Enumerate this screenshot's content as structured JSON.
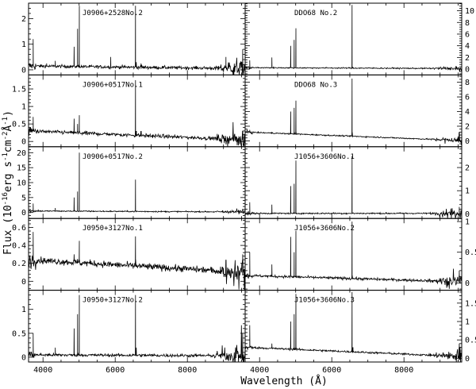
{
  "figure": {
    "ylabel_main": "Flux (10",
    "ylabel_exp1": "-16",
    "ylabel_mid": "erg s",
    "ylabel_exp2": "-1",
    "ylabel_mid2": "cm",
    "ylabel_exp3": "-2",
    "ylabel_mid3": "Å",
    "ylabel_exp4": "-1",
    "ylabel_end": ")",
    "xlabel": "Wavelength (Å)"
  },
  "chart_data": [
    {
      "type": "line",
      "title": "J0906+2528No.2",
      "column": "left",
      "row": 0,
      "ylim": [
        -0.2,
        2.6
      ],
      "yticks": [
        0,
        1,
        2
      ],
      "xlim": [
        3600,
        9600
      ],
      "xticks": [
        4000,
        6000,
        8000
      ],
      "show_xticklabels": false,
      "continuum": [
        0.15,
        0.05
      ],
      "noise": 0.06,
      "red_noise": 0.35,
      "lines": [
        [
          3727,
          1.2
        ],
        [
          4102,
          0.25
        ],
        [
          4340,
          0.35
        ],
        [
          4861,
          0.9
        ],
        [
          4959,
          1.6
        ],
        [
          5007,
          2.5
        ],
        [
          5876,
          0.5
        ],
        [
          6563,
          2.5
        ],
        [
          6584,
          0.3
        ],
        [
          6717,
          0.25
        ],
        [
          6731,
          0.2
        ],
        [
          9069,
          0.5
        ],
        [
          9532,
          0.8
        ]
      ]
    },
    {
      "type": "line",
      "title": "J0906+0517No.1",
      "column": "left",
      "row": 1,
      "ylim": [
        -0.15,
        1.9
      ],
      "yticks": [
        0,
        0.5,
        1,
        1.5
      ],
      "xlim": [
        3600,
        9600
      ],
      "xticks": [
        4000,
        6000,
        8000
      ],
      "show_xticklabels": false,
      "continuum": [
        0.3,
        0.05
      ],
      "noise": 0.05,
      "red_noise": 0.25,
      "lines": [
        [
          3727,
          0.7
        ],
        [
          4861,
          0.65
        ],
        [
          4959,
          0.5
        ],
        [
          5007,
          0.75
        ],
        [
          6563,
          1.75
        ],
        [
          6584,
          0.2
        ],
        [
          6717,
          0.15
        ],
        [
          9532,
          0.3
        ]
      ]
    },
    {
      "type": "line",
      "title": "J0906+0517No.2",
      "column": "left",
      "row": 2,
      "ylim": [
        -2,
        22
      ],
      "yticks": [
        0,
        5,
        10,
        15,
        20
      ],
      "xlim": [
        3600,
        9600
      ],
      "xticks": [
        4000,
        6000,
        8000
      ],
      "show_xticklabels": false,
      "continuum": [
        0.5,
        0.2
      ],
      "noise": 0.2,
      "red_noise": 0.6,
      "lines": [
        [
          3727,
          3
        ],
        [
          3869,
          1
        ],
        [
          4340,
          1.5
        ],
        [
          4861,
          5
        ],
        [
          4959,
          7
        ],
        [
          5007,
          20
        ],
        [
          6563,
          11
        ],
        [
          6584,
          0.5
        ],
        [
          9532,
          1
        ]
      ]
    },
    {
      "type": "line",
      "title": "J0950+3127No.1",
      "column": "left",
      "row": 3,
      "ylim": [
        -0.1,
        0.7
      ],
      "yticks": [
        0,
        0.2,
        0.4,
        0.6
      ],
      "xlim": [
        3600,
        9600
      ],
      "xticks": [
        4000,
        6000,
        8000
      ],
      "show_xticklabels": false,
      "continuum": [
        0.24,
        0.1
      ],
      "noise": 0.035,
      "red_noise": 0.12,
      "lines": [
        [
          3727,
          0.55
        ],
        [
          4861,
          0.3
        ],
        [
          4959,
          0.25
        ],
        [
          5007,
          0.45
        ],
        [
          6563,
          0.5
        ],
        [
          9069,
          0.15
        ],
        [
          9532,
          0.3
        ]
      ]
    },
    {
      "type": "line",
      "title": "J0950+3127No.2",
      "column": "left",
      "row": 4,
      "ylim": [
        -0.1,
        1.4
      ],
      "yticks": [
        0,
        0.5,
        1
      ],
      "xlim": [
        3600,
        9600
      ],
      "xticks": [
        4000,
        6000,
        8000
      ],
      "show_xticklabels": true,
      "continuum": [
        0.05,
        0.03
      ],
      "noise": 0.03,
      "red_noise": 0.25,
      "lines": [
        [
          3727,
          0.5
        ],
        [
          4340,
          0.2
        ],
        [
          4861,
          0.6
        ],
        [
          4959,
          0.9
        ],
        [
          5007,
          1.3
        ],
        [
          6563,
          1.3
        ],
        [
          6584,
          0.2
        ],
        [
          9532,
          0.5
        ]
      ]
    },
    {
      "type": "line",
      "title": "DDO68 No.2",
      "column": "right",
      "row": 0,
      "ylim": [
        -1,
        11.3
      ],
      "yticks": [
        0,
        2,
        4,
        6,
        8,
        10
      ],
      "xlim": [
        3600,
        9600
      ],
      "xticks": [
        4000,
        6000,
        8000
      ],
      "show_xticklabels": false,
      "continuum": [
        0.25,
        0.1
      ],
      "noise": 0.1,
      "red_noise": 0.3,
      "lines": [
        [
          3727,
          1.5
        ],
        [
          4340,
          2
        ],
        [
          4861,
          4
        ],
        [
          4959,
          5
        ],
        [
          5007,
          7
        ],
        [
          6563,
          11
        ],
        [
          6584,
          0.3
        ]
      ]
    },
    {
      "type": "line",
      "title": "DDO68 No.3",
      "column": "right",
      "row": 1,
      "ylim": [
        -0.8,
        9
      ],
      "yticks": [
        0,
        2,
        4,
        6,
        8
      ],
      "xlim": [
        3600,
        9600
      ],
      "xticks": [
        4000,
        6000,
        8000
      ],
      "show_xticklabels": false,
      "continuum": [
        1.2,
        0.05
      ],
      "noise": 0.08,
      "red_noise": 0.4,
      "lines": [
        [
          3727,
          1.5
        ],
        [
          4340,
          1
        ],
        [
          4861,
          4
        ],
        [
          4959,
          4.5
        ],
        [
          5007,
          5.5
        ],
        [
          6563,
          8.5
        ],
        [
          9532,
          0.8
        ]
      ]
    },
    {
      "type": "line",
      "title": "J1056+3606No.1",
      "column": "right",
      "row": 2,
      "ylim": [
        -0.2,
        2.9
      ],
      "yticks": [
        0,
        1,
        2
      ],
      "xlim": [
        3600,
        9600
      ],
      "xticks": [
        4000,
        6000,
        8000
      ],
      "show_xticklabels": false,
      "continuum": [
        0.02,
        0.02
      ],
      "noise": 0.03,
      "red_noise": 0.2,
      "lines": [
        [
          3727,
          0.5
        ],
        [
          4340,
          0.4
        ],
        [
          4861,
          1.2
        ],
        [
          4959,
          1.3
        ],
        [
          5007,
          2.3
        ],
        [
          6563,
          2.5
        ],
        [
          9532,
          0.3
        ]
      ]
    },
    {
      "type": "line",
      "title": "J1056+3606No.2",
      "column": "right",
      "row": 3,
      "ylim": [
        -0.12,
        1.05
      ],
      "yticks": [
        0,
        0.5,
        1
      ],
      "xlim": [
        3600,
        9600
      ],
      "xticks": [
        4000,
        6000,
        8000
      ],
      "show_xticklabels": false,
      "continuum": [
        0.12,
        0.02
      ],
      "noise": 0.02,
      "red_noise": 0.12,
      "lines": [
        [
          3727,
          0.5
        ],
        [
          4340,
          0.3
        ],
        [
          4861,
          0.75
        ],
        [
          4959,
          0.5
        ],
        [
          5007,
          0.85
        ],
        [
          6563,
          1
        ],
        [
          9532,
          0.2
        ]
      ]
    },
    {
      "type": "line",
      "title": "J1056+3606No.3",
      "column": "right",
      "row": 4,
      "ylim": [
        -0.1,
        1.85
      ],
      "yticks": [
        0,
        0.5,
        1,
        1.5
      ],
      "xlim": [
        3600,
        9600
      ],
      "xticks": [
        4000,
        6000,
        8000
      ],
      "show_xticklabels": true,
      "continuum": [
        0.3,
        0.05
      ],
      "noise": 0.025,
      "red_noise": 0.2,
      "lines": [
        [
          3727,
          0.9
        ],
        [
          4340,
          0.4
        ],
        [
          4861,
          1
        ],
        [
          4959,
          1.2
        ],
        [
          5007,
          1.75
        ],
        [
          6563,
          1.8
        ],
        [
          6584,
          0.2
        ],
        [
          9532,
          0.4
        ]
      ]
    }
  ]
}
